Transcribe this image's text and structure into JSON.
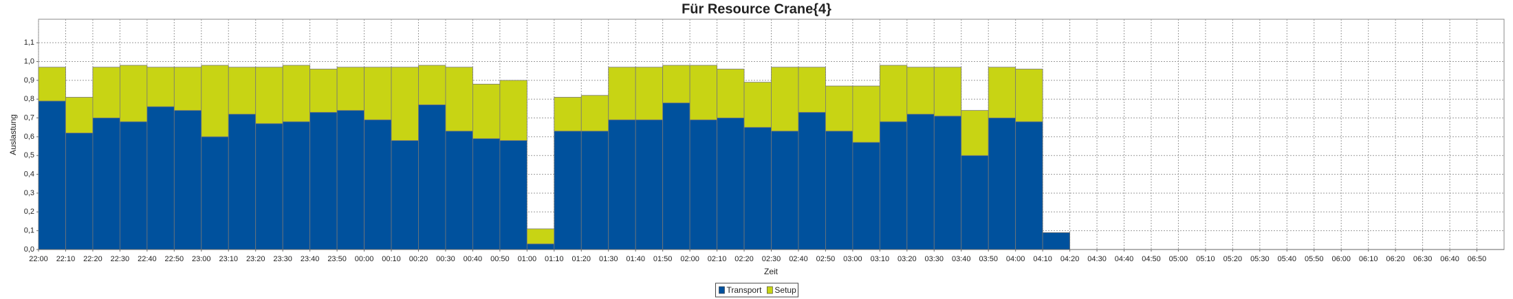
{
  "chart_data": {
    "type": "stacked_bar",
    "title": "Für Resource Crane{4}",
    "x_label": "Zeit",
    "y_label": "Auslastung",
    "categories": [
      "22:00",
      "22:10",
      "22:20",
      "22:30",
      "22:40",
      "22:50",
      "23:00",
      "23:10",
      "23:20",
      "23:30",
      "23:40",
      "23:50",
      "00:00",
      "00:10",
      "00:20",
      "00:30",
      "00:40",
      "00:50",
      "01:00",
      "01:10",
      "01:20",
      "01:30",
      "01:40",
      "01:50",
      "02:00",
      "02:10",
      "02:20",
      "02:30",
      "02:40",
      "02:50",
      "03:00",
      "03:10",
      "03:20",
      "03:30",
      "03:40",
      "03:50",
      "04:00",
      "04:10",
      "04:20",
      "04:30",
      "04:40",
      "04:50",
      "05:00",
      "05:10",
      "05:20",
      "05:30",
      "05:40",
      "05:50",
      "06:00",
      "06:10",
      "06:20",
      "06:30",
      "06:40",
      "06:50"
    ],
    "series": [
      {
        "name": "Transport",
        "color": "#00519d",
        "values": [
          0.79,
          0.62,
          0.7,
          0.68,
          0.76,
          0.74,
          0.6,
          0.72,
          0.67,
          0.68,
          0.73,
          0.74,
          0.69,
          0.58,
          0.77,
          0.63,
          0.59,
          0.58,
          0.03,
          0.63,
          0.63,
          0.69,
          0.69,
          0.78,
          0.69,
          0.7,
          0.65,
          0.63,
          0.73,
          0.63,
          0.57,
          0.68,
          0.72,
          0.71,
          0.5,
          0.7,
          0.68,
          0.09,
          null,
          null,
          null,
          null,
          null,
          null,
          null,
          null,
          null,
          null,
          null,
          null,
          null,
          null,
          null,
          null
        ]
      },
      {
        "name": "Setup",
        "color": "#c8d414",
        "values": [
          0.18,
          0.19,
          0.27,
          0.3,
          0.21,
          0.23,
          0.38,
          0.25,
          0.3,
          0.3,
          0.23,
          0.23,
          0.28,
          0.39,
          0.21,
          0.34,
          0.29,
          0.32,
          0.08,
          0.18,
          0.19,
          0.28,
          0.28,
          0.2,
          0.29,
          0.26,
          0.24,
          0.34,
          0.24,
          0.24,
          0.3,
          0.3,
          0.25,
          0.26,
          0.24,
          0.27,
          0.28,
          0,
          null,
          null,
          null,
          null,
          null,
          null,
          null,
          null,
          null,
          null,
          null,
          null,
          null,
          null,
          null,
          null
        ]
      }
    ],
    "ylim": [
      0,
      1.225
    ],
    "yticks": [
      {
        "value": 0,
        "label": "0,0"
      },
      {
        "value": 0.1,
        "label": "0,1"
      },
      {
        "value": 0.2,
        "label": "0,2"
      },
      {
        "value": 0.3,
        "label": "0,3"
      },
      {
        "value": 0.4,
        "label": "0,4"
      },
      {
        "value": 0.5,
        "label": "0,5"
      },
      {
        "value": 0.6,
        "label": "0,6"
      },
      {
        "value": 0.7,
        "label": "0,7"
      },
      {
        "value": 0.8,
        "label": "0,8"
      },
      {
        "value": 0.9,
        "label": "0,9"
      },
      {
        "value": 1.0,
        "label": "1,0"
      },
      {
        "value": 1.1,
        "label": "1,1"
      }
    ],
    "grid": true,
    "legend": "bottom"
  }
}
